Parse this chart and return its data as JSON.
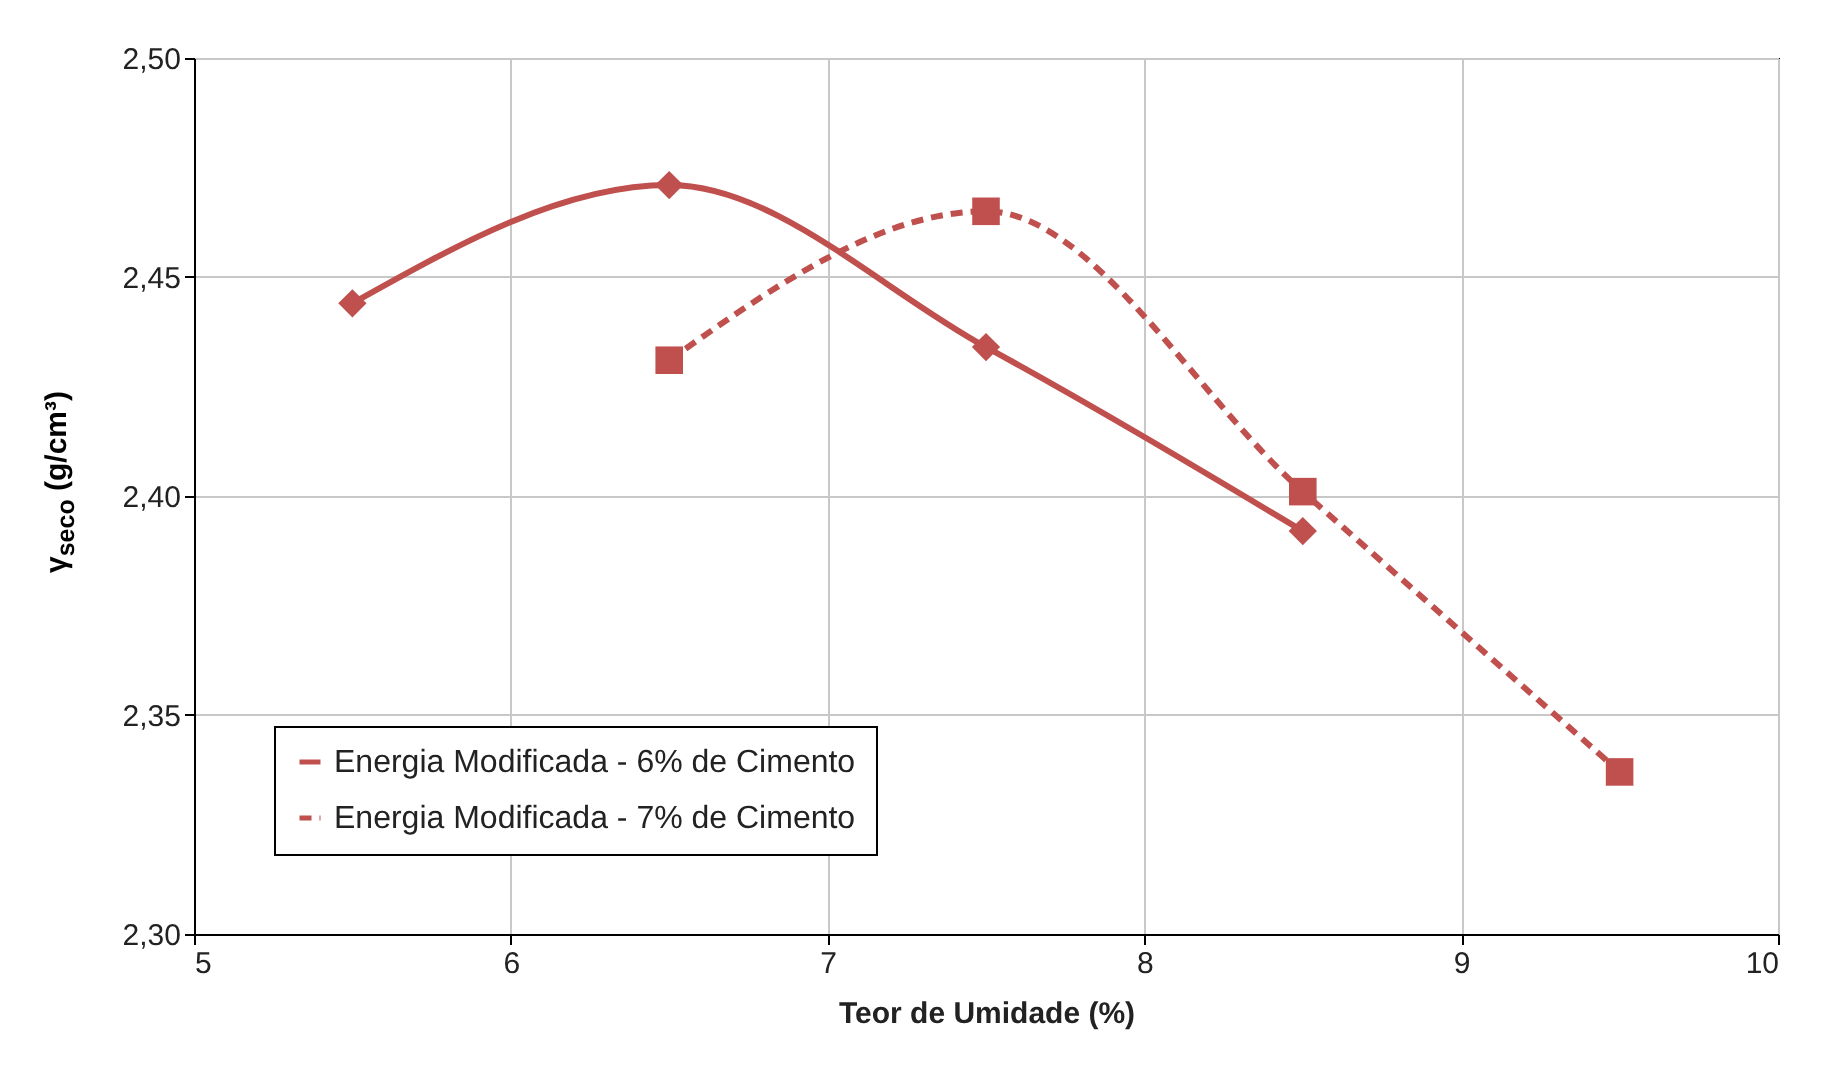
{
  "chart_data": {
    "type": "line",
    "xlabel": "Teor de Umidade (%)",
    "ylabel": "γ$_{seco}$ (g/cm³)",
    "xlim": [
      5,
      10
    ],
    "xticks": [
      5,
      6,
      7,
      8,
      9,
      10
    ],
    "ylim": [
      2.3,
      2.5
    ],
    "yticks": [
      {
        "value": 2.3,
        "label": "2,30"
      },
      {
        "value": 2.35,
        "label": "2,35"
      },
      {
        "value": 2.4,
        "label": "2,40"
      },
      {
        "value": 2.45,
        "label": "2,45"
      },
      {
        "value": 2.5,
        "label": "2,50"
      }
    ],
    "grid": true,
    "legend": "bottom left",
    "series": [
      {
        "name": "Energia Modificada - 6% de Cimento",
        "color": "#c0504d",
        "marker": "diamond",
        "line_style": "solid",
        "x": [
          5.5,
          6.5,
          7.5,
          8.5
        ],
        "values": [
          2.444,
          2.471,
          2.434,
          2.392
        ]
      },
      {
        "name": "Energia Modificada - 7% de Cimento",
        "color": "#c0504d",
        "marker": "square",
        "line_style": "dashed",
        "x": [
          6.5,
          7.5,
          8.5,
          9.5
        ],
        "values": [
          2.431,
          2.465,
          2.401,
          2.337
        ]
      }
    ]
  }
}
